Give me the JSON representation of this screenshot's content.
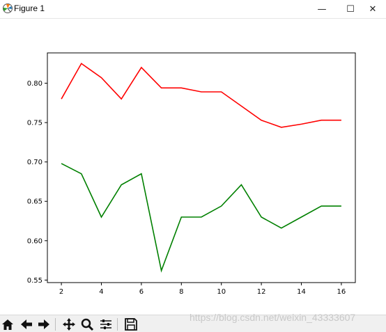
{
  "window": {
    "title": "Figure 1",
    "minimize_glyph": "—",
    "maximize_glyph": "☐",
    "close_glyph": "✕"
  },
  "toolbar": {
    "buttons": [
      "home-icon",
      "back-arrow-icon",
      "forward-arrow-icon",
      "pan-icon",
      "zoom-icon",
      "configure-subplots-icon",
      "save-icon"
    ]
  },
  "watermark": "https://blog.csdn.net/weixin_43333607",
  "chart_data": {
    "type": "line",
    "x": [
      2,
      3,
      4,
      5,
      6,
      7,
      8,
      9,
      10,
      11,
      12,
      13,
      14,
      15,
      16
    ],
    "series": [
      {
        "color": "#ff0000",
        "values": [
          0.78,
          0.825,
          0.807,
          0.78,
          0.82,
          0.794,
          0.794,
          0.789,
          0.789,
          0.771,
          0.753,
          0.744,
          0.748,
          0.753,
          0.753
        ]
      },
      {
        "color": "#008000",
        "values": [
          0.698,
          0.685,
          0.63,
          0.671,
          0.685,
          0.562,
          0.63,
          0.63,
          0.644,
          0.671,
          0.63,
          0.616,
          0.63,
          0.644,
          0.644
        ]
      }
    ],
    "xlim": [
      1.3,
      16.7
    ],
    "ylim": [
      0.5468,
      0.8385
    ],
    "xticks": [
      2,
      4,
      6,
      8,
      10,
      12,
      14,
      16
    ],
    "yticks": [
      0.55,
      0.6,
      0.65,
      0.7,
      0.75,
      0.8
    ],
    "ytick_labels": [
      "0.55",
      "0.60",
      "0.65",
      "0.70",
      "0.75",
      "0.80"
    ],
    "grid": false
  }
}
